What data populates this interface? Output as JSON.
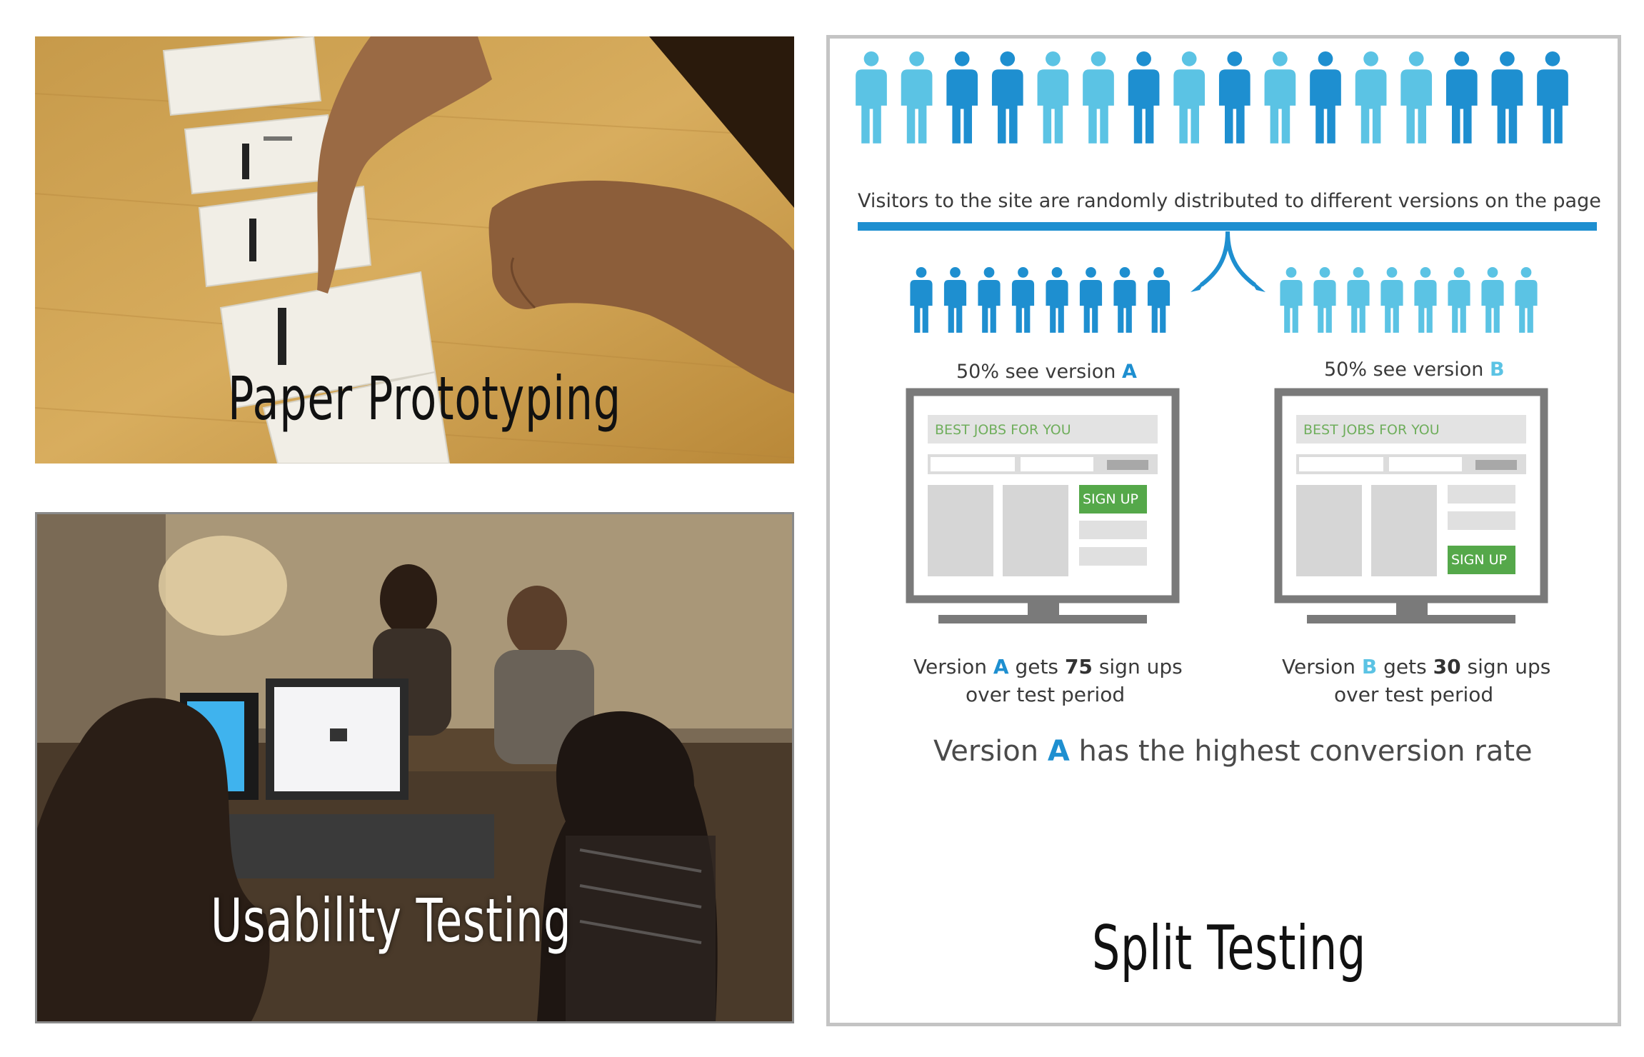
{
  "panels": {
    "paper": {
      "caption": "Paper Prototyping"
    },
    "usability": {
      "caption": "Usability Testing"
    },
    "split": {
      "caption": "Split Testing",
      "visitors_text": "Visitors to the site are randomly distributed to different versions on the page",
      "version_a": {
        "label_prefix": "50% see version",
        "letter": "A",
        "mock_title": "BEST JOBS FOR YOU",
        "signup": "SIGN UP",
        "result_prefix": "Version",
        "result_mid": "gets",
        "count": "75",
        "result_suffix": "sign ups",
        "result_line2": "over test period"
      },
      "version_b": {
        "label_prefix": "50% see version",
        "letter": "B",
        "mock_title": "BEST JOBS FOR YOU",
        "signup": "SIGN UP",
        "result_prefix": "Version",
        "result_mid": "gets",
        "count": "30",
        "result_suffix": "sign ups",
        "result_line2": "over test period"
      },
      "conclusion_prefix": "Version",
      "conclusion_letter": "A",
      "conclusion_suffix": "has the highest conversion rate"
    }
  },
  "colors": {
    "dark_blue": "#1e8fd0",
    "light_blue": "#5bc3e4",
    "signup_green": "#55a84a",
    "monitor_gray": "#7a7a7a"
  },
  "icons": [
    "person-icon",
    "split-arrow-icon",
    "monitor-icon"
  ]
}
